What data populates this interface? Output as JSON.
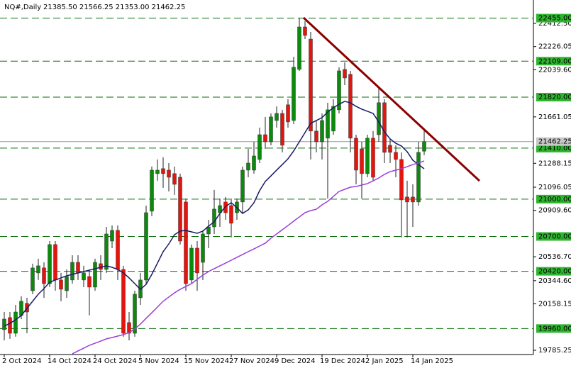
{
  "chart_data": {
    "type": "candlestick",
    "title": "NQ#,Daily",
    "ohlc_text": "21385.50 21566.25 21353.00 21462.25",
    "categories": [
      "2 Oct 2024",
      null,
      null,
      null,
      null,
      null,
      null,
      null,
      "14 Oct 2024",
      null,
      null,
      null,
      null,
      null,
      null,
      null,
      "24 Oct 2024",
      null,
      null,
      null,
      null,
      null,
      null,
      null,
      "5 Nov 2024",
      null,
      null,
      null,
      null,
      null,
      null,
      null,
      "15 Nov 2024",
      null,
      null,
      null,
      null,
      null,
      null,
      null,
      "27 Nov 2024",
      null,
      null,
      null,
      null,
      null,
      null,
      null,
      "9 Dec 2024",
      null,
      null,
      null,
      null,
      null,
      null,
      null,
      "19 Dec 2024",
      null,
      null,
      null,
      null,
      null,
      null,
      null,
      "2 Jan 2025",
      null,
      null,
      null,
      null,
      null,
      null,
      null,
      "14 Jan 2025",
      null,
      null
    ],
    "open": [
      19951,
      20048,
      19922,
      20065,
      20162,
      20264,
      20407,
      20447,
      20321,
      20635,
      20350,
      20264,
      20350,
      20492,
      20350,
      20378,
      20293,
      20481,
      20435,
      20663,
      20749,
      20435,
      20008,
      19922,
      20207,
      20350,
      20903,
      21205,
      21245,
      21233,
      21205,
      21176,
      20977,
      20350,
      20606,
      20492,
      20720,
      20777,
      20891,
      20977,
      20948,
      20891,
      20977,
      21233,
      21233,
      21319,
      21518,
      21461,
      21632,
      21689,
      21758,
      21632,
      22043,
      22384,
      22287,
      21547,
      21461,
      21490,
      21547,
      21718,
      22043,
      22003,
      21490,
      21404,
      21205,
      21490,
      21518,
      21775,
      21433,
      21376,
      21319,
      21017,
      21017,
      20977,
      21385.5
    ],
    "high": [
      20093,
      20093,
      20150,
      20219,
      20207,
      20481,
      20521,
      20492,
      20663,
      20663,
      20407,
      20435,
      20549,
      20549,
      20464,
      20435,
      20521,
      20549,
      20777,
      20789,
      20789,
      20464,
      20093,
      20264,
      20407,
      20948,
      21262,
      21319,
      21336,
      21290,
      21262,
      21205,
      21005,
      20635,
      20663,
      20749,
      20834,
      21074,
      21005,
      21017,
      21005,
      21005,
      21262,
      21404,
      21461,
      21575,
      21661,
      21689,
      21746,
      21718,
      21803,
      22145,
      22455,
      22430,
      22344,
      21632,
      21689,
      21775,
      21803,
      22060,
      22099,
      22031,
      21518,
      21461,
      21518,
      21547,
      21889,
      21803,
      21490,
      21433,
      21376,
      21148,
      21119,
      21461,
      21566.25
    ],
    "low": [
      19865,
      19877,
      19894,
      20036,
      19922,
      20236,
      20350,
      20207,
      20293,
      20264,
      20179,
      20207,
      20321,
      20350,
      20293,
      20065,
      20264,
      20350,
      20407,
      20606,
      20350,
      19894,
      19865,
      19894,
      20150,
      20321,
      20863,
      21148,
      21091,
      21062,
      21034,
      20635,
      20264,
      20321,
      20264,
      20350,
      20606,
      20720,
      20777,
      20834,
      20692,
      20834,
      20891,
      21176,
      21205,
      21290,
      21404,
      21433,
      21575,
      21376,
      21575,
      21604,
      22031,
      22287,
      21319,
      21376,
      21319,
      21005,
      21518,
      21689,
      21917,
      21376,
      21119,
      21005,
      21176,
      21148,
      21461,
      21290,
      21290,
      21176,
      20692,
      20692,
      20777,
      20948,
      21353
    ],
    "close": [
      20036,
      19922,
      20093,
      20179,
      20093,
      20447,
      20464,
      20321,
      20635,
      20350,
      20276,
      20378,
      20492,
      20407,
      20407,
      20293,
      20492,
      20435,
      20720,
      20749,
      20435,
      19922,
      19922,
      20236,
      20350,
      20891,
      21233,
      21233,
      21205,
      21176,
      21119,
      20663,
      20321,
      20606,
      20407,
      20720,
      20777,
      20920,
      20948,
      20891,
      20806,
      20977,
      21233,
      21290,
      21347,
      21518,
      21461,
      21661,
      21689,
      21433,
      21621,
      22060,
      22384,
      22316,
      21547,
      21461,
      21632,
      21718,
      21746,
      22031,
      21974,
      21490,
      21233,
      21205,
      21490,
      21176,
      21775,
      21376,
      21376,
      21319,
      20994,
      20977,
      20977,
      21376,
      21462.25
    ],
    "up_color": "#0b8a0b",
    "down_color": "#e4140e",
    "series": [
      {
        "color": "#1a1a66",
        "values": [
          19979,
          20002,
          20030,
          20065,
          20122,
          20179,
          20236,
          20281,
          20332,
          20350,
          20367,
          20384,
          20395,
          20407,
          20418,
          20429,
          20441,
          20452,
          20464,
          20452,
          20435,
          20407,
          20367,
          20321,
          20275,
          20315,
          20395,
          20486,
          20578,
          20640,
          20714,
          20743,
          20748,
          20737,
          20726,
          20743,
          20783,
          20817,
          20885,
          20942,
          20971,
          20931,
          20885,
          20914,
          20971,
          21068,
          21142,
          21187,
          21233,
          21278,
          21324,
          21387,
          21461,
          21535,
          21609,
          21632,
          21655,
          21700,
          21734,
          21763,
          21786,
          21774,
          21746,
          21723,
          21706,
          21689,
          21620,
          21541,
          21484,
          21449,
          21427,
          21381,
          21313,
          21278,
          21244
        ]
      },
      {
        "color": "#9b3fd6",
        "values": [
          null,
          null,
          null,
          null,
          null,
          null,
          null,
          null,
          null,
          null,
          null,
          null,
          19757,
          19780,
          19802,
          19825,
          19842,
          19859,
          19877,
          19888,
          19899,
          19911,
          19928,
          19956,
          19996,
          20042,
          20087,
          20133,
          20179,
          20213,
          20247,
          20275,
          20298,
          20321,
          20355,
          20389,
          20418,
          20441,
          20464,
          20486,
          20509,
          20532,
          20555,
          20578,
          20600,
          20623,
          20646,
          20686,
          20720,
          20754,
          20788,
          20823,
          20857,
          20891,
          20908,
          20919,
          20954,
          20982,
          21022,
          21062,
          21079,
          21096,
          21102,
          21113,
          21125,
          21147,
          21170,
          21199,
          21221,
          21233,
          21244,
          21261,
          21278,
          21290,
          21307
        ]
      }
    ],
    "trendline": {
      "color": "#8b0000",
      "x": [
        52.75,
        83.75
      ],
      "y": [
        22458,
        21147
      ]
    },
    "levels": [
      {
        "value": 22455,
        "label": "22455.00"
      },
      {
        "value": 22109,
        "label": "22109.00"
      },
      {
        "value": 21820,
        "label": "21820.00"
      },
      {
        "value": 21410,
        "label": "21410.00"
      },
      {
        "value": 21000,
        "label": "21000.00"
      },
      {
        "value": 20700,
        "label": "20700.00"
      },
      {
        "value": 20420,
        "label": "20420.00"
      },
      {
        "value": 19960,
        "label": "19960.00"
      }
    ],
    "level_color": "#0a6d0a",
    "current_price": {
      "value": 21462.25,
      "label": "21462.25"
    },
    "ylim": [
      19751,
      22600.6
    ],
    "yticks": [
      {
        "value": 22412.5,
        "label": "22412.50"
      },
      {
        "value": 22226.05,
        "label": "22226.05"
      },
      {
        "value": 22039.6,
        "label": "22039.60"
      },
      {
        "value": 21661.05,
        "label": "21661.05"
      },
      {
        "value": 21288.15,
        "label": "21288.15"
      },
      {
        "value": 21096.05,
        "label": "21096.05"
      },
      {
        "value": 20909.6,
        "label": "20909.60"
      },
      {
        "value": 20536.7,
        "label": "20536.70"
      },
      {
        "value": 20344.6,
        "label": "20344.60"
      },
      {
        "value": 20158.15,
        "label": "20158.15"
      },
      {
        "value": 19785.25,
        "label": "19785.25"
      }
    ]
  }
}
